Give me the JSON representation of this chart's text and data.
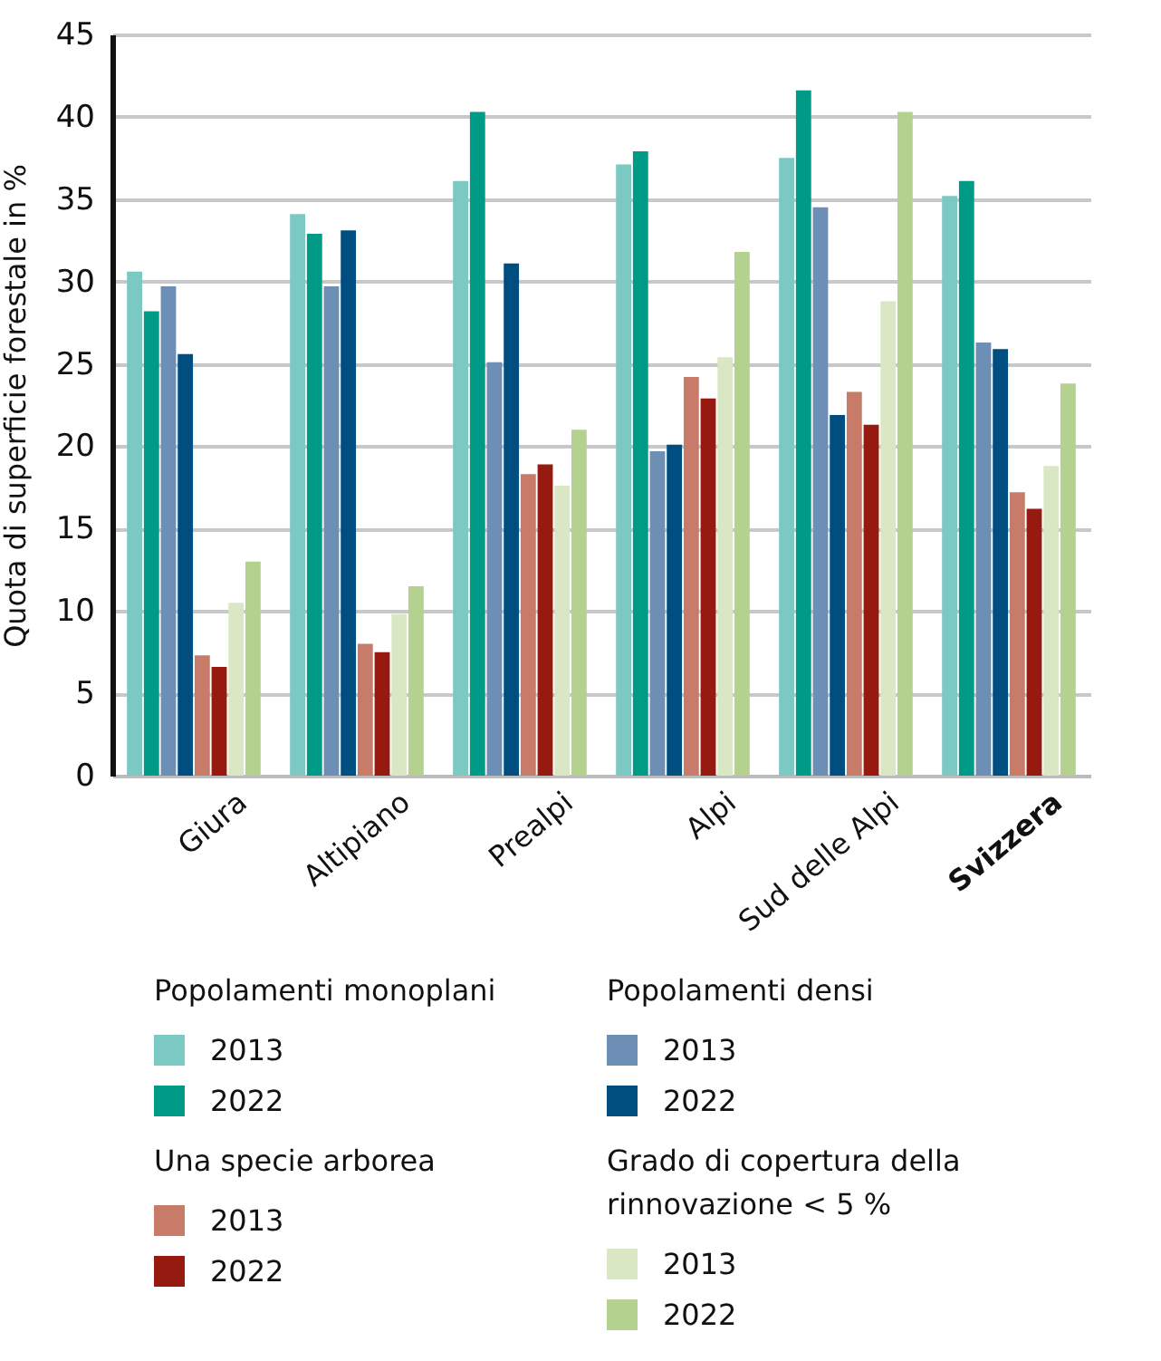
{
  "chart_data": {
    "type": "bar",
    "ylabel": "Quota di superficie forestale in %",
    "categories": [
      "Giura",
      "Altipiano",
      "Prealpi",
      "Alpi",
      "Sud delle Alpi",
      "Svizzera"
    ],
    "series": [
      {
        "name": "2013",
        "color": "#7cc8c3",
        "values": [
          30.6,
          34.1,
          36.1,
          37.1,
          37.5,
          35.2
        ]
      },
      {
        "name": "2022",
        "color": "#009b87",
        "values": [
          28.2,
          32.9,
          40.3,
          37.9,
          41.6,
          36.1
        ]
      },
      {
        "name": "2013",
        "color": "#6e8fb5",
        "values": [
          29.7,
          29.7,
          25.1,
          19.7,
          34.5,
          26.3
        ]
      },
      {
        "name": "2022",
        "color": "#004d7f",
        "values": [
          25.6,
          33.1,
          31.1,
          20.1,
          21.9,
          25.9
        ]
      },
      {
        "name": "2013",
        "color": "#c87b68",
        "values": [
          7.3,
          8.0,
          18.3,
          24.2,
          23.3,
          17.2
        ]
      },
      {
        "name": "2022",
        "color": "#961a10",
        "values": [
          6.6,
          7.5,
          18.9,
          22.9,
          21.3,
          16.2
        ]
      },
      {
        "name": "2013",
        "color": "#d9e7c4",
        "values": [
          10.5,
          9.8,
          17.6,
          25.4,
          28.8,
          18.8
        ]
      },
      {
        "name": "2022",
        "color": "#b5d190",
        "values": [
          13.0,
          11.5,
          21.0,
          31.8,
          40.3,
          23.8
        ]
      }
    ],
    "annotations": [
      "Popolamenti monoplani",
      "Popolamenti densi",
      "Una specie arborea",
      "Grado di copertura della rinnovazione < 5 %"
    ],
    "ylim": [
      0,
      45
    ],
    "yticks": [
      0,
      5,
      10,
      15,
      20,
      25,
      30,
      35,
      40,
      45
    ],
    "grid": "y",
    "legend": "bottom"
  }
}
